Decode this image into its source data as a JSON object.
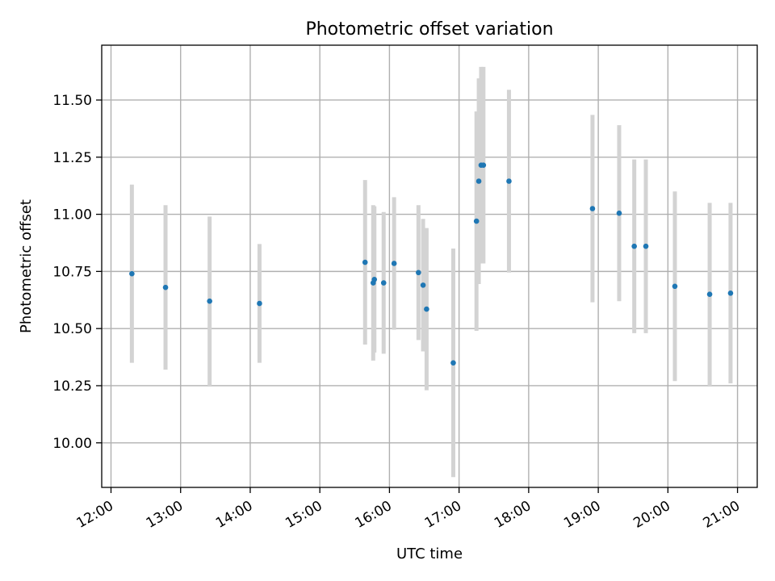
{
  "chart_data": {
    "type": "scatter",
    "title": "Photometric offset variation",
    "xlabel": "UTC time",
    "ylabel": "Photometric offset",
    "x_axis": {
      "kind": "time",
      "min": "11:52",
      "max": "21:17",
      "ticks": [
        "12:00",
        "13:00",
        "14:00",
        "15:00",
        "16:00",
        "17:00",
        "18:00",
        "19:00",
        "20:00",
        "21:00"
      ]
    },
    "y_axis": {
      "min": 9.805,
      "max": 11.74,
      "ticks": [
        "10.00",
        "10.25",
        "10.50",
        "10.75",
        "11.00",
        "11.25",
        "11.50"
      ]
    },
    "grid": true,
    "marker_color": "#1f77b4",
    "errorbar_color": "#d3d3d3",
    "points": [
      {
        "t": "12:18",
        "y": 10.74,
        "err": 0.39
      },
      {
        "t": "12:47",
        "y": 10.68,
        "err": 0.36
      },
      {
        "t": "13:25",
        "y": 10.62,
        "err": 0.37
      },
      {
        "t": "14:08",
        "y": 10.61,
        "err": 0.26
      },
      {
        "t": "15:39",
        "y": 10.79,
        "err": 0.36
      },
      {
        "t": "15:46",
        "y": 10.7,
        "err": 0.34
      },
      {
        "t": "15:47",
        "y": 10.715,
        "err": 0.32
      },
      {
        "t": "15:55",
        "y": 10.7,
        "err": 0.31
      },
      {
        "t": "16:04",
        "y": 10.785,
        "err": 0.29
      },
      {
        "t": "16:25",
        "y": 10.745,
        "err": 0.295
      },
      {
        "t": "16:29",
        "y": 10.69,
        "err": 0.29
      },
      {
        "t": "16:32",
        "y": 10.585,
        "err": 0.355
      },
      {
        "t": "16:55",
        "y": 10.35,
        "err": 0.5
      },
      {
        "t": "17:15",
        "y": 10.97,
        "err": 0.48
      },
      {
        "t": "17:17",
        "y": 11.145,
        "err": 0.45
      },
      {
        "t": "17:19",
        "y": 11.215,
        "err": 0.43
      },
      {
        "t": "17:21",
        "y": 11.215,
        "err": 0.43
      },
      {
        "t": "17:43",
        "y": 11.145,
        "err": 0.4
      },
      {
        "t": "18:55",
        "y": 11.025,
        "err": 0.41
      },
      {
        "t": "19:18",
        "y": 11.005,
        "err": 0.385
      },
      {
        "t": "19:31",
        "y": 10.86,
        "err": 0.38
      },
      {
        "t": "19:41",
        "y": 10.86,
        "err": 0.38
      },
      {
        "t": "20:06",
        "y": 10.685,
        "err": 0.415
      },
      {
        "t": "20:36",
        "y": 10.65,
        "err": 0.4
      },
      {
        "t": "20:54",
        "y": 10.655,
        "err": 0.395
      }
    ]
  }
}
